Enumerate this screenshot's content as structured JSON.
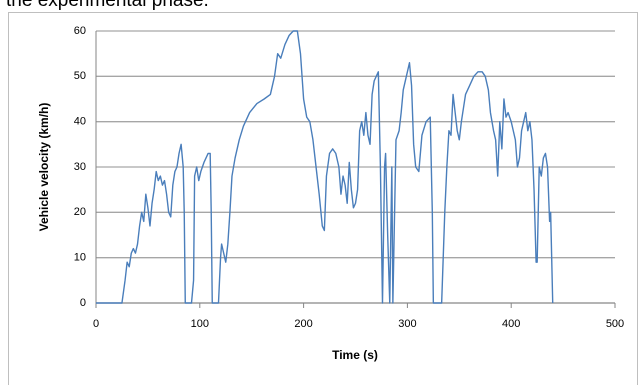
{
  "caption": "the experimental phase.",
  "chart_data": {
    "type": "line",
    "xlabel": "Time (s)",
    "ylabel": "Vehicle velocity (km/h)",
    "xlim": [
      0,
      500
    ],
    "xticks": [
      0,
      100,
      200,
      300,
      400,
      500
    ],
    "ylim": [
      0,
      60
    ],
    "yticks": [
      0,
      10,
      20,
      30,
      40,
      50,
      60
    ],
    "grid": true,
    "x": [
      0,
      25,
      28,
      30,
      32,
      34,
      36,
      38,
      40,
      42,
      44,
      46,
      48,
      50,
      52,
      54,
      56,
      58,
      60,
      62,
      64,
      66,
      68,
      70,
      72,
      74,
      76,
      78,
      80,
      82,
      84,
      85,
      86,
      92,
      94,
      95,
      97,
      99,
      101,
      104,
      108,
      110,
      111,
      112,
      118,
      120,
      121,
      123,
      125,
      127,
      129,
      131,
      134,
      138,
      142,
      148,
      155,
      162,
      168,
      172,
      175,
      178,
      182,
      186,
      190,
      194,
      197,
      200,
      203,
      206,
      209,
      212,
      215,
      218,
      220,
      222,
      225,
      228,
      231,
      234,
      236,
      238,
      240,
      242,
      244,
      246,
      248,
      250,
      252,
      254,
      256,
      258,
      260,
      262,
      264,
      266,
      268,
      270,
      272,
      274,
      276,
      278,
      279,
      281,
      283,
      285,
      286,
      289,
      292,
      294,
      296,
      299,
      302,
      304,
      306,
      308,
      311,
      314,
      318,
      322,
      324,
      325,
      333,
      336,
      338,
      340,
      342,
      344,
      346,
      348,
      350,
      352,
      354,
      356,
      360,
      364,
      368,
      372,
      375,
      378,
      380,
      383,
      385,
      387,
      389,
      391,
      393,
      395,
      397,
      400,
      402,
      404,
      406,
      408,
      410,
      412,
      414,
      416,
      418,
      420,
      422,
      424,
      425,
      427,
      429,
      431,
      433,
      435,
      437,
      438,
      440
    ],
    "series": [
      {
        "name": "Vehicle velocity",
        "color": "#4a7ebb",
        "values": [
          0,
          0,
          5,
          9,
          8,
          11,
          12,
          11,
          13,
          17,
          20,
          18,
          24,
          21,
          17,
          22,
          25,
          29,
          27,
          28,
          26,
          27,
          24,
          20,
          19,
          26,
          29,
          30,
          33,
          35,
          30,
          20,
          0,
          0,
          5,
          28,
          30,
          27,
          29,
          31,
          33,
          33,
          20,
          0,
          0,
          10,
          13,
          11,
          9,
          13,
          20,
          28,
          32,
          36,
          39,
          42,
          44,
          45,
          46,
          50,
          55,
          54,
          57,
          59,
          60,
          60,
          55,
          45,
          41,
          40,
          36,
          30,
          24,
          17,
          16,
          28,
          33,
          34,
          33,
          30,
          24,
          28,
          26,
          22,
          31,
          25,
          21,
          22,
          25,
          38,
          40,
          37,
          42,
          37,
          35,
          46,
          49,
          50,
          51,
          30,
          0,
          30,
          33,
          15,
          0,
          30,
          0,
          36,
          38,
          42,
          47,
          50,
          53,
          48,
          35,
          30,
          29,
          37,
          40,
          41,
          20,
          0,
          0,
          20,
          30,
          38,
          37,
          46,
          42,
          38,
          36,
          40,
          43,
          46,
          48,
          50,
          51,
          51,
          50,
          47,
          42,
          38,
          36,
          28,
          40,
          34,
          45,
          41,
          42,
          40,
          38,
          36,
          30,
          32,
          38,
          40,
          42,
          38,
          40,
          36,
          25,
          9,
          9,
          30,
          28,
          32,
          33,
          30,
          18,
          20,
          0
        ]
      }
    ]
  }
}
